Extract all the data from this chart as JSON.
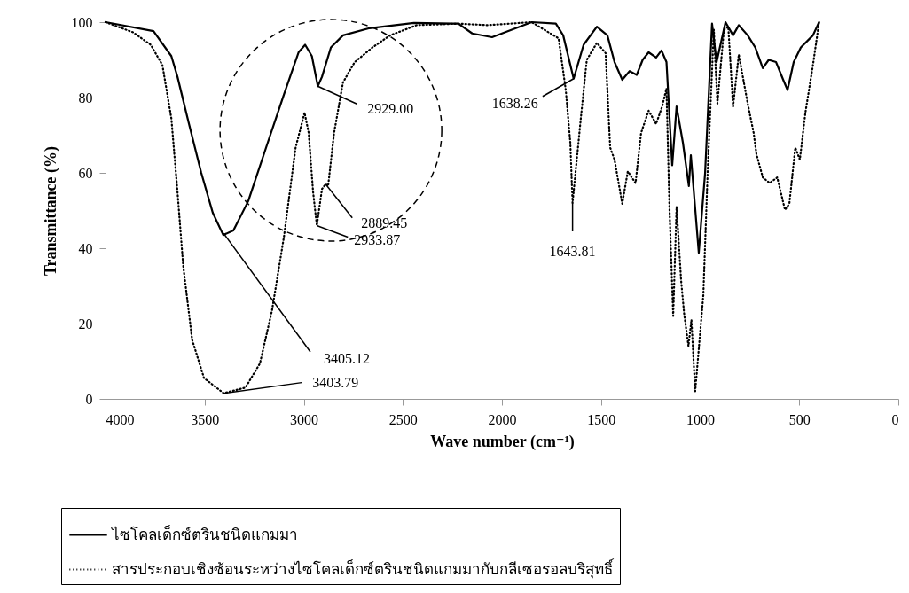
{
  "chart_data": {
    "type": "line",
    "xlabel": "Wave number (cm⁻¹)",
    "ylabel": "Transmittance (%)",
    "xlim": [
      4000,
      0
    ],
    "xticks": [
      4000,
      3500,
      3000,
      2500,
      2000,
      1500,
      1000,
      500,
      0
    ],
    "ylim": [
      0,
      100
    ],
    "yticks": [
      0,
      20,
      40,
      60,
      80,
      100
    ],
    "legend": "bottom",
    "series": [
      {
        "name": "ไซโคลเด็กซ์ตรินชนิดแกมมา",
        "color": "#000000",
        "line_style": "solid",
        "x": [
          4000,
          3758,
          3668,
          3637,
          3579,
          3517,
          3459,
          3406,
          3355,
          3280,
          3190,
          3100,
          3026,
          2993,
          2959,
          2929,
          2908,
          2863,
          2802,
          2668,
          2444,
          2220,
          2150,
          2050,
          1950,
          1850,
          1728,
          1691,
          1638.26,
          1588,
          1521,
          1468,
          1432,
          1393,
          1356,
          1320,
          1290,
          1260,
          1222,
          1195,
          1170,
          1141,
          1119,
          1087,
          1057,
          1047,
          1007,
          975,
          940,
          917,
          872,
          834,
          805,
          760,
          722,
          684,
          654,
          617,
          581,
          559,
          528,
          492,
          431,
          400
        ],
        "values": [
          100,
          97.6,
          91,
          85.5,
          73,
          60,
          49.4,
          43.5,
          44.7,
          52.5,
          66.7,
          80.8,
          92,
          94,
          91,
          83,
          85.5,
          93.3,
          96.5,
          98.4,
          99.8,
          99.6,
          97,
          96,
          98,
          100,
          99.6,
          96.5,
          85,
          94,
          98.8,
          96.5,
          89.4,
          84.7,
          87,
          86,
          90,
          92,
          90.6,
          92.5,
          89.4,
          62,
          77.6,
          68,
          56.5,
          64.7,
          38.8,
          60,
          99.6,
          89.4,
          100,
          96.5,
          99.2,
          96.5,
          93.3,
          87.8,
          90,
          89.4,
          84.7,
          82,
          89.4,
          93.3,
          96.5,
          100
        ]
      },
      {
        "name": "สารประกอบเชิงซ้อนระหว่างไซโคลเด็กซ์ตรินชนิดแกมมากับกลีเซอรอลบริสุทธิ์",
        "color": "#000000",
        "line_style": "dotted",
        "x": [
          4000,
          3861,
          3772,
          3713,
          3668,
          3637,
          3608,
          3563,
          3503,
          3403.79,
          3294,
          3221,
          3160,
          3100,
          3041,
          2996,
          2975,
          2953,
          2933.87,
          2908,
          2889.45,
          2877,
          2847,
          2802,
          2743,
          2653,
          2564,
          2430,
          2220,
          2072,
          1850,
          1714,
          1678,
          1655,
          1643.81,
          1602,
          1572,
          1521,
          1477,
          1454,
          1432,
          1393,
          1365,
          1326,
          1298,
          1260,
          1222,
          1192,
          1170,
          1155,
          1136,
          1119,
          1096,
          1081,
          1059,
          1044,
          1025,
          984,
          962,
          931,
          913,
          880,
          858,
          834,
          805,
          760,
          730,
          716,
          684,
          649,
          611,
          572,
          550,
          520,
          497,
          469,
          431,
          400
        ],
        "values": [
          100,
          97.3,
          94,
          88.6,
          74.5,
          55,
          35.3,
          15.7,
          5.5,
          1.5,
          3,
          9.4,
          23.5,
          43,
          66.7,
          76,
          70.6,
          55,
          46,
          55.7,
          57,
          56.5,
          70.6,
          84,
          89.4,
          93.3,
          96.5,
          99.2,
          99.6,
          99.2,
          100,
          95.7,
          82,
          68,
          52,
          74.5,
          90,
          94.5,
          91.8,
          66.7,
          63.5,
          51.8,
          60.4,
          57.3,
          70.6,
          76.5,
          73,
          77.6,
          82.4,
          51,
          22,
          51,
          31.4,
          22.7,
          14,
          21,
          2,
          27.5,
          60.4,
          98,
          78.4,
          98,
          98.8,
          77.6,
          91.4,
          78.4,
          70.6,
          65,
          58.8,
          57.3,
          58.8,
          50.2,
          51.8,
          66.7,
          63.5,
          76,
          88.6,
          100
        ]
      }
    ],
    "annotations": [
      {
        "text": "2929.00",
        "x": 2929,
        "y": 83
      },
      {
        "text": "2889.45",
        "x": 2889.45,
        "y": 57
      },
      {
        "text": "2933.87",
        "x": 2933.87,
        "y": 46
      },
      {
        "text": "3405.12",
        "x": 3405.12,
        "y": 44
      },
      {
        "text": "3403.79",
        "x": 3403.79,
        "y": 1.5
      },
      {
        "text": "1638.26",
        "x": 1638.26,
        "y": 85
      },
      {
        "text": "1643.81",
        "x": 1643.81,
        "y": 52
      }
    ]
  }
}
